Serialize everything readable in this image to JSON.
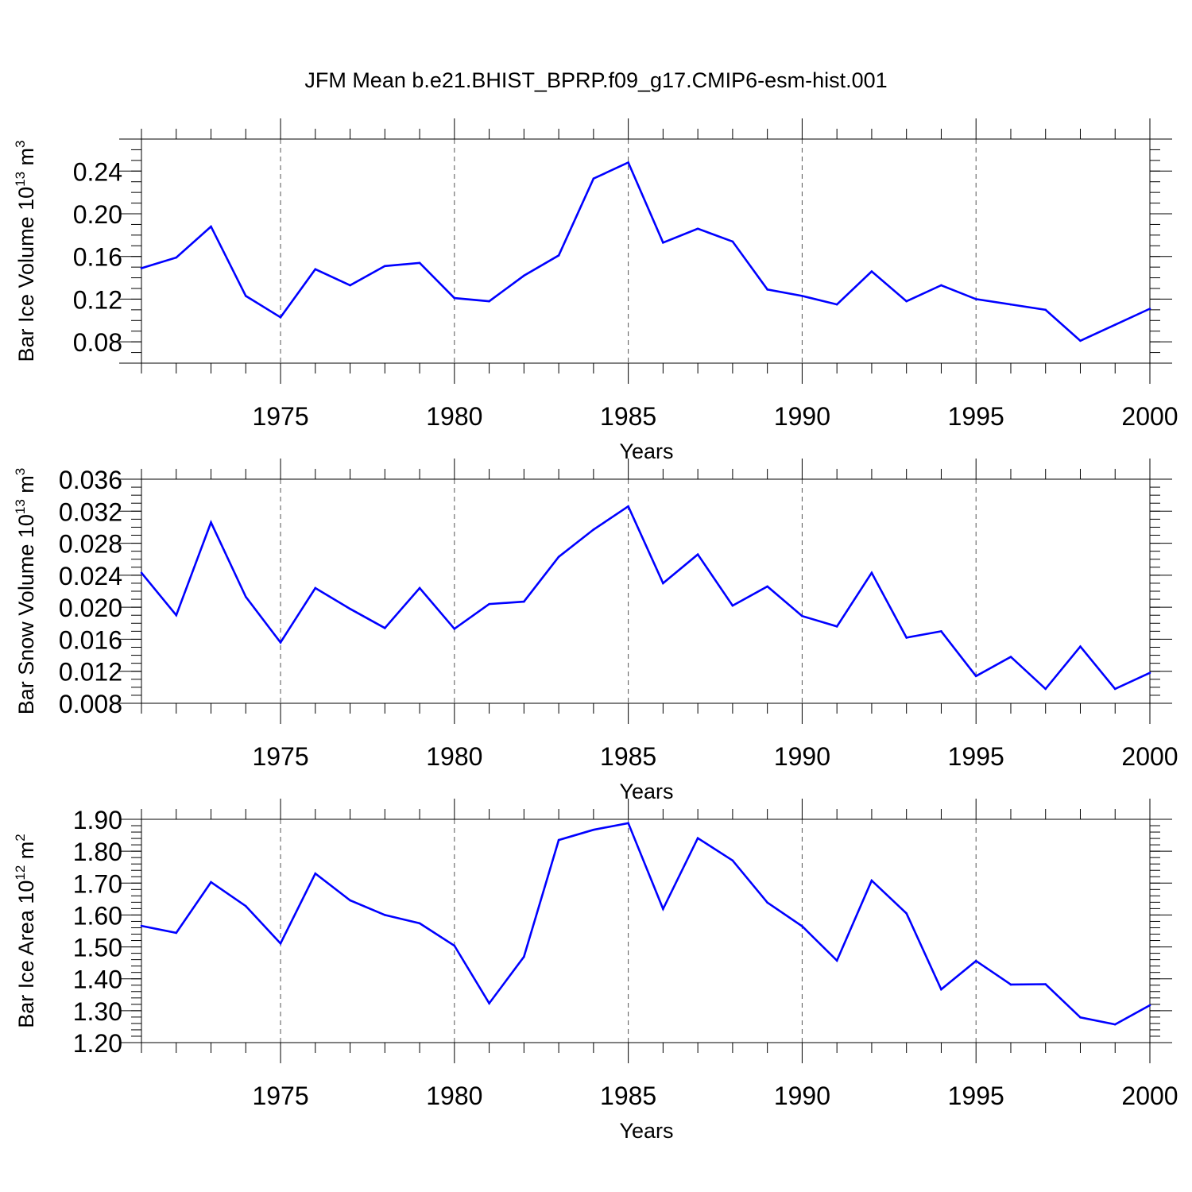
{
  "title": "JFM Mean b.e21.BHIST_BPRP.f09_g17.CMIP6-esm-hist.001",
  "colors": {
    "line": "#0000ff",
    "axis": "#000000",
    "grid": "#555555"
  },
  "chart_data": [
    {
      "type": "line",
      "xlabel": "Years",
      "ylabel": {
        "base": "Bar Ice Volume 10",
        "exp": "13",
        "unit": " m",
        "unit_exp": "3"
      },
      "xlim": [
        1971,
        2000
      ],
      "ylim": [
        0.06,
        0.27
      ],
      "xticks": [
        1975,
        1980,
        1985,
        1990,
        1995,
        2000
      ],
      "xtick_labels": [
        "1975",
        "1980",
        "1985",
        "1990",
        "1995",
        "2000"
      ],
      "yticks": [
        0.08,
        0.12,
        0.16,
        0.2,
        0.24
      ],
      "ytick_labels": [
        "0.08",
        "0.12",
        "0.16",
        "0.20",
        "0.24"
      ],
      "y_minor_step": 0.01,
      "grid": "x-dashed",
      "series": [
        {
          "x": [
            1971,
            1972,
            1973,
            1974,
            1975,
            1976,
            1977,
            1978,
            1979,
            1980,
            1981,
            1982,
            1983,
            1984,
            1985,
            1986,
            1987,
            1988,
            1989,
            1990,
            1991,
            1992,
            1993,
            1994,
            1995,
            1996,
            1997,
            1998,
            1999,
            2000
          ],
          "values": [
            0.149,
            0.159,
            0.188,
            0.123,
            0.103,
            0.148,
            0.133,
            0.151,
            0.154,
            0.121,
            0.118,
            0.142,
            0.161,
            0.233,
            0.248,
            0.173,
            0.186,
            0.174,
            0.129,
            0.123,
            0.115,
            0.146,
            0.118,
            0.133,
            0.12,
            0.115,
            0.11,
            0.081,
            0.096,
            0.111
          ]
        }
      ]
    },
    {
      "type": "line",
      "xlabel": "Years",
      "ylabel": {
        "base": "Bar Snow Volume 10",
        "exp": "13",
        "unit": " m",
        "unit_exp": "3"
      },
      "xlim": [
        1971,
        2000
      ],
      "ylim": [
        0.008,
        0.036
      ],
      "xticks": [
        1975,
        1980,
        1985,
        1990,
        1995,
        2000
      ],
      "xtick_labels": [
        "1975",
        "1980",
        "1985",
        "1990",
        "1995",
        "2000"
      ],
      "yticks": [
        0.008,
        0.012,
        0.016,
        0.02,
        0.024,
        0.028,
        0.032,
        0.036
      ],
      "ytick_labels": [
        "0.008",
        "0.012",
        "0.016",
        "0.020",
        "0.024",
        "0.028",
        "0.032",
        "0.036"
      ],
      "y_minor_step": 0.001,
      "grid": "x-dashed",
      "series": [
        {
          "x": [
            1971,
            1972,
            1973,
            1974,
            1975,
            1976,
            1977,
            1978,
            1979,
            1980,
            1981,
            1982,
            1983,
            1984,
            1985,
            1986,
            1987,
            1988,
            1989,
            1990,
            1991,
            1992,
            1993,
            1994,
            1995,
            1996,
            1997,
            1998,
            1999,
            2000
          ],
          "values": [
            0.0243,
            0.019,
            0.0306,
            0.0213,
            0.0156,
            0.0224,
            0.0198,
            0.0174,
            0.0224,
            0.0173,
            0.0204,
            0.0207,
            0.0263,
            0.0297,
            0.0326,
            0.023,
            0.0266,
            0.0202,
            0.0226,
            0.0189,
            0.0176,
            0.0243,
            0.0162,
            0.017,
            0.0114,
            0.0138,
            0.0098,
            0.0151,
            0.0098,
            0.0118
          ]
        }
      ]
    },
    {
      "type": "line",
      "xlabel": "Years",
      "ylabel": {
        "base": "Bar Ice Area 10",
        "exp": "12",
        "unit": " m",
        "unit_exp": "2"
      },
      "xlim": [
        1971,
        2000
      ],
      "ylim": [
        1.2,
        1.9
      ],
      "xticks": [
        1975,
        1980,
        1985,
        1990,
        1995,
        2000
      ],
      "xtick_labels": [
        "1975",
        "1980",
        "1985",
        "1990",
        "1995",
        "2000"
      ],
      "yticks": [
        1.2,
        1.3,
        1.4,
        1.5,
        1.6,
        1.7,
        1.8,
        1.9
      ],
      "ytick_labels": [
        "1.20",
        "1.30",
        "1.40",
        "1.50",
        "1.60",
        "1.70",
        "1.80",
        "1.90"
      ],
      "y_minor_step": 0.02,
      "grid": "x-dashed",
      "series": [
        {
          "x": [
            1971,
            1972,
            1973,
            1974,
            1975,
            1976,
            1977,
            1978,
            1979,
            1980,
            1981,
            1982,
            1983,
            1984,
            1985,
            1986,
            1987,
            1988,
            1989,
            1990,
            1991,
            1992,
            1993,
            1994,
            1995,
            1996,
            1997,
            1998,
            1999,
            2000
          ],
          "values": [
            1.566,
            1.544,
            1.703,
            1.628,
            1.511,
            1.73,
            1.646,
            1.6,
            1.574,
            1.504,
            1.323,
            1.469,
            1.835,
            1.867,
            1.888,
            1.619,
            1.841,
            1.771,
            1.639,
            1.565,
            1.457,
            1.708,
            1.605,
            1.367,
            1.456,
            1.382,
            1.383,
            1.279,
            1.257,
            1.317
          ]
        }
      ]
    }
  ]
}
